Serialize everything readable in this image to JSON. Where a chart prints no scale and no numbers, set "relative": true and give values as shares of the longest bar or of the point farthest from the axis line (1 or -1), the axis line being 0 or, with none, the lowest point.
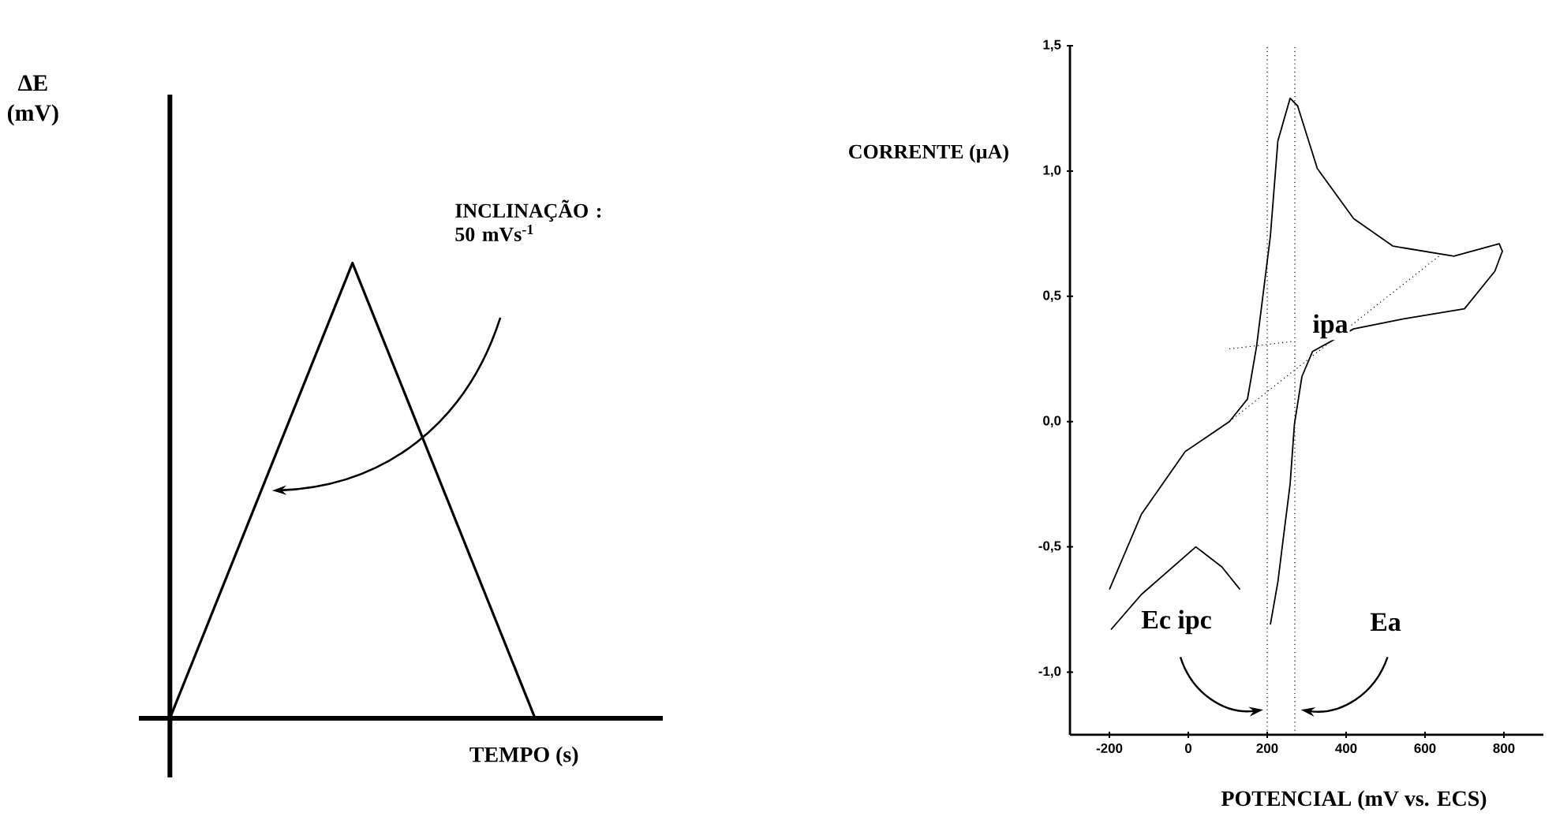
{
  "chart_data": [
    {
      "type": "line",
      "relative": true,
      "ylabel": "ΔE (mV)",
      "xlabel": "TEMPO (s)",
      "categories": [
        null,
        null,
        null
      ],
      "series": [
        {
          "color": "#000000",
          "values": [
            0,
            1,
            0
          ]
        }
      ],
      "annotations": [
        "INCLINAÇÃO : 50 mVs$^{-1}$"
      ]
    },
    {
      "type": "line",
      "ylabel": "CORRENTE (µA)",
      "xlabel": "POTENCIAL (mV vs. ECS)",
      "xlim": [
        -300,
        900
      ],
      "xticks": [
        -200,
        0,
        200,
        400,
        600,
        800
      ],
      "ylim": [
        -1.25,
        1.5
      ],
      "yticks": [
        {
          "value": -1.0,
          "label": "-1,0"
        },
        {
          "value": -0.5,
          "label": "-0,5"
        },
        {
          "value": 0.0,
          "label": "0,0"
        },
        {
          "value": 0.5,
          "label": "0,5"
        },
        {
          "value": 1.0,
          "label": "1,0"
        },
        {
          "value": 1.5,
          "label": "1,5"
        }
      ],
      "series": [
        {
          "color": "#000000",
          "x": [
            -200,
            -119,
            -8,
            104,
            150,
            173,
            208,
            227,
            258,
            277,
            327,
            419,
            519,
            673,
            788,
            796,
            777,
            700,
            546,
            419,
            315,
            288,
            269,
            258,
            238,
            227,
            208
          ],
          "values": [
            -0.67,
            -0.37,
            -0.12,
            0,
            0.09,
            0.3,
            0.74,
            1.12,
            1.29,
            1.26,
            1.01,
            0.81,
            0.7,
            0.66,
            0.71,
            0.68,
            0.6,
            0.45,
            0.41,
            0.37,
            0.28,
            0.18,
            -0.01,
            -0.25,
            -0.5,
            -0.64,
            -0.81
          ]
        },
        {
          "color": "#000000",
          "x": [
            -196,
            -119,
            19,
            85,
            131
          ],
          "values": [
            -0.83,
            -0.69,
            -0.5,
            -0.58,
            -0.67
          ]
        },
        {
          "color": "#000000",
          "line_style": "dotted",
          "x": [
            96,
            635
          ],
          "values": [
            -0.01,
            0.66
          ]
        },
        {
          "color": "#000000",
          "line_style": "dotted",
          "x": [
            104,
            265
          ],
          "values": [
            0.29,
            0.32
          ]
        }
      ],
      "ref_lines": [
        {
          "axis": "x",
          "value": 200,
          "label": "Ec ipc",
          "line_style": "dotted",
          "color": "#000000"
        },
        {
          "axis": "x",
          "value": 270,
          "label": "Ea",
          "line_style": "dotted",
          "color": "#000000"
        }
      ],
      "annotations": [
        {
          "text": "ipa",
          "x": 360,
          "y": 0.38
        }
      ]
    }
  ]
}
